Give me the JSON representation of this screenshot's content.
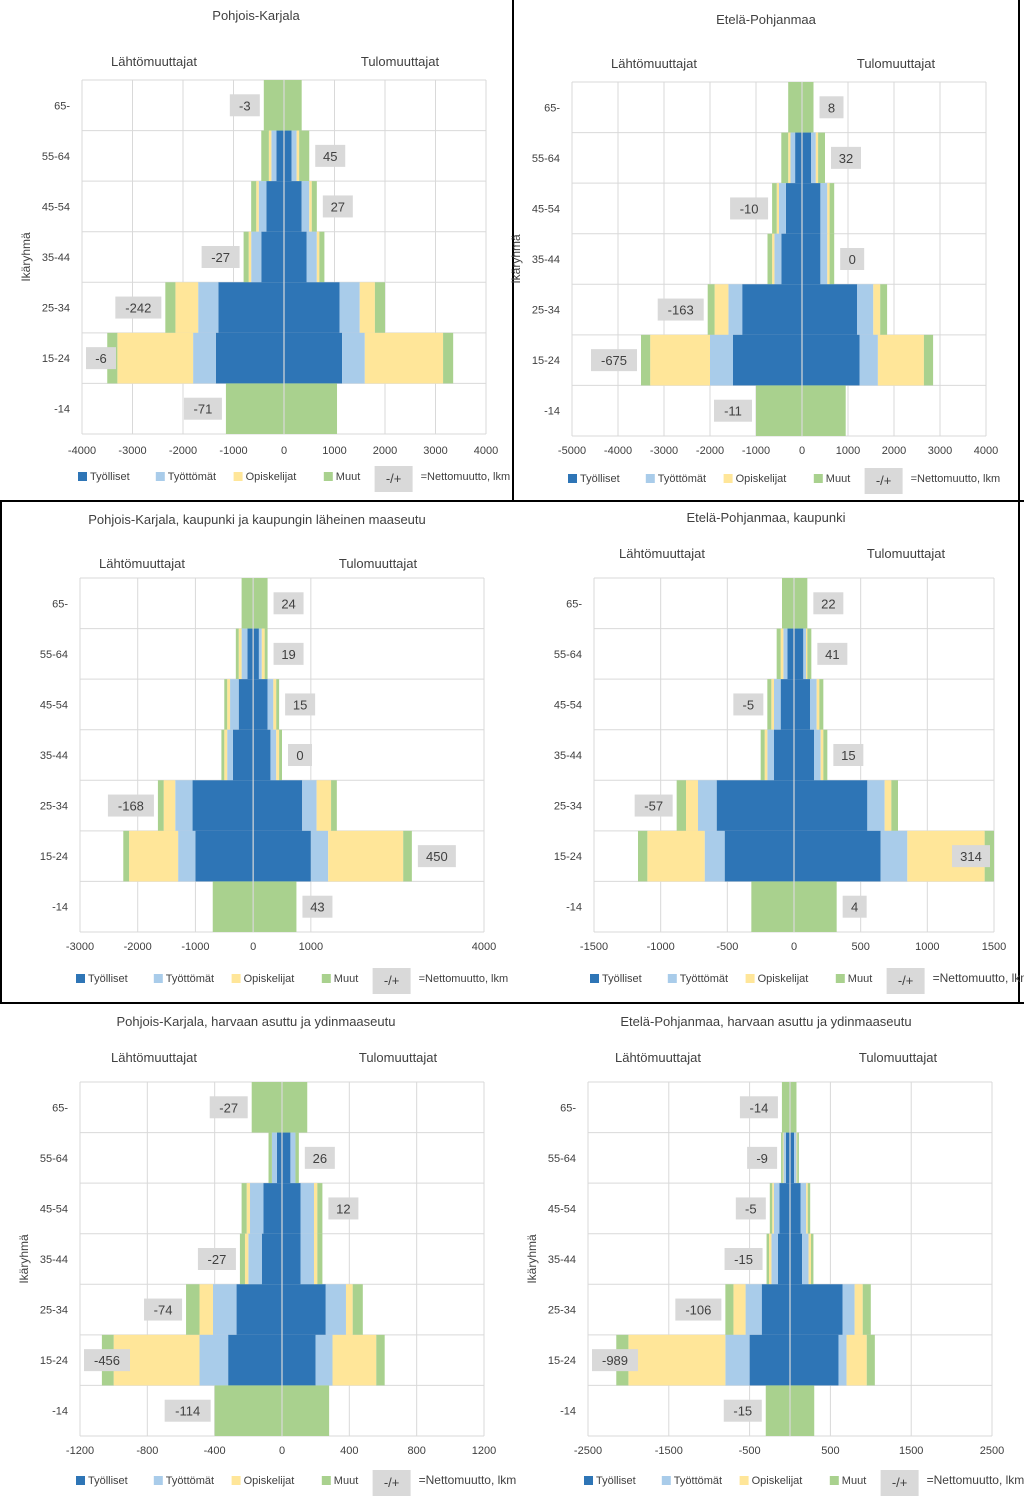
{
  "common": {
    "left_label": "Lähtömuuttajat",
    "right_label": "Tulomuuttajat",
    "ylabel": "Ikäryhmä",
    "age_groups": [
      "65-",
      "55-64",
      "45-54",
      "35-44",
      "25-34",
      "15-24",
      "-14"
    ],
    "legend": {
      "items": [
        "Työlliset",
        "Työttömät",
        "Opiskelijat",
        "Muut"
      ],
      "box_label": "-/+",
      "net_label": "=Nettomuutto, lkm",
      "net_label_large": "=Nettomuutto, lkm"
    },
    "colors": {
      "tyolliset": "#2E75B6",
      "tyottomat": "#A9CCEA",
      "opiskelijat": "#FFE699",
      "muut": "#A9D18E",
      "netbox": "#D9D9D9",
      "grid": "#D9D9D9"
    }
  },
  "chart_data": [
    {
      "type": "bar",
      "title": "Pohjois-Karjala",
      "categories": [
        "65-",
        "55-64",
        "45-54",
        "35-44",
        "25-34",
        "15-24",
        "-14"
      ],
      "xlim": [
        -4000,
        4000
      ],
      "ticks": [
        -4000,
        -3000,
        -2000,
        -1000,
        0,
        1000,
        2000,
        3000,
        4000
      ],
      "out": {
        "tyolliset": [
          0,
          150,
          350,
          450,
          1300,
          1350,
          0
        ],
        "tyottomat": [
          0,
          100,
          150,
          200,
          400,
          450,
          0
        ],
        "opiskelijat": [
          0,
          50,
          50,
          50,
          450,
          1500,
          0
        ],
        "muut": [
          400,
          150,
          100,
          100,
          200,
          200,
          1150
        ]
      },
      "in": {
        "tyolliset": [
          0,
          150,
          350,
          450,
          1100,
          1150,
          0
        ],
        "tyottomat": [
          0,
          100,
          150,
          200,
          400,
          450,
          0
        ],
        "opiskelijat": [
          0,
          50,
          50,
          50,
          300,
          1550,
          0
        ],
        "muut": [
          350,
          200,
          100,
          100,
          200,
          200,
          1050
        ]
      },
      "net": [
        -3,
        45,
        27,
        -27,
        -242,
        -6,
        -71
      ],
      "net_side": [
        "L",
        "R",
        "R",
        "L",
        "L",
        "L",
        "L"
      ],
      "show_ylabel": true,
      "legend_size": "small"
    },
    {
      "type": "bar",
      "title": "Etelä-Pohjanmaa",
      "categories": [
        "65-",
        "55-64",
        "45-54",
        "35-44",
        "25-34",
        "15-24",
        "-14"
      ],
      "xlim": [
        -5000,
        4000
      ],
      "ticks": [
        -5000,
        -4000,
        -3000,
        -2000,
        -1000,
        0,
        1000,
        2000,
        3000,
        4000
      ],
      "out": {
        "tyolliset": [
          0,
          150,
          350,
          450,
          1300,
          1500,
          0
        ],
        "tyottomat": [
          0,
          100,
          150,
          150,
          300,
          500,
          0
        ],
        "opiskelijat": [
          0,
          50,
          50,
          50,
          300,
          1300,
          0
        ],
        "muut": [
          300,
          150,
          100,
          100,
          150,
          200,
          1000
        ]
      },
      "in": {
        "tyolliset": [
          0,
          200,
          400,
          400,
          1200,
          1250,
          0
        ],
        "tyottomat": [
          0,
          100,
          150,
          150,
          350,
          400,
          0
        ],
        "opiskelijat": [
          0,
          50,
          50,
          50,
          150,
          1000,
          0
        ],
        "muut": [
          250,
          150,
          100,
          100,
          150,
          200,
          950
        ]
      },
      "net": [
        8,
        32,
        -10,
        0,
        -163,
        -675,
        -11
      ],
      "net_side": [
        "R",
        "R",
        "L",
        "R",
        "L",
        "L",
        "L"
      ],
      "show_ylabel": true,
      "legend_size": "small"
    },
    {
      "type": "bar",
      "title": "Pohjois-Karjala, kaupunki ja kaupungin läheinen maaseutu",
      "categories": [
        "65-",
        "55-64",
        "45-54",
        "35-44",
        "25-34",
        "15-24",
        "-14"
      ],
      "xlim": [
        -3000,
        4000
      ],
      "ticks": [
        -3000,
        -2000,
        -1000,
        0,
        1000,
        4000
      ],
      "tick_positions": [
        -3000,
        -2000,
        -1000,
        0,
        1000,
        4000
      ],
      "out": {
        "tyolliset": [
          0,
          100,
          250,
          350,
          1050,
          1000,
          0
        ],
        "tyottomat": [
          0,
          100,
          150,
          100,
          300,
          300,
          0
        ],
        "opiskelijat": [
          0,
          50,
          50,
          50,
          200,
          850,
          0
        ],
        "muut": [
          200,
          50,
          50,
          50,
          100,
          100,
          700
        ]
      },
      "in": {
        "tyolliset": [
          0,
          100,
          250,
          300,
          850,
          1000,
          0
        ],
        "tyottomat": [
          0,
          50,
          100,
          100,
          250,
          300,
          0
        ],
        "opiskelijat": [
          0,
          50,
          50,
          50,
          250,
          1300,
          0
        ],
        "muut": [
          250,
          50,
          50,
          50,
          100,
          150,
          750
        ]
      },
      "net": [
        24,
        19,
        15,
        0,
        -168,
        450,
        43
      ],
      "net_side": [
        "R",
        "R",
        "R",
        "R",
        "L",
        "R",
        "R"
      ],
      "show_ylabel": false,
      "legend_size": "small"
    },
    {
      "type": "bar",
      "title": "Etelä-Pohjanmaa, kaupunki",
      "categories": [
        "65-",
        "55-64",
        "45-54",
        "35-44",
        "25-34",
        "15-24",
        "-14"
      ],
      "xlim": [
        -1500,
        1500
      ],
      "ticks": [
        -1500,
        -1000,
        -500,
        0,
        500,
        1000,
        1500
      ],
      "out": {
        "tyolliset": [
          0,
          50,
          100,
          150,
          580,
          520,
          0
        ],
        "tyottomat": [
          0,
          30,
          50,
          50,
          140,
          150,
          0
        ],
        "opiskelijat": [
          0,
          20,
          20,
          20,
          90,
          430,
          0
        ],
        "muut": [
          90,
          30,
          30,
          30,
          70,
          70,
          320
        ]
      },
      "in": {
        "tyolliset": [
          0,
          70,
          120,
          150,
          550,
          650,
          0
        ],
        "tyottomat": [
          0,
          20,
          50,
          50,
          130,
          200,
          0
        ],
        "opiskelijat": [
          0,
          10,
          20,
          20,
          50,
          580,
          0
        ],
        "muut": [
          100,
          30,
          30,
          30,
          50,
          70,
          320
        ]
      },
      "net": [
        22,
        41,
        -5,
        15,
        -57,
        314,
        4
      ],
      "net_side": [
        "R",
        "R",
        "L",
        "R",
        "L",
        "R",
        "R"
      ],
      "show_ylabel": false,
      "legend_size": "large"
    },
    {
      "type": "bar",
      "title": "Pohjois-Karjala, harvaan asuttu ja ydinmaaseutu",
      "categories": [
        "65-",
        "55-64",
        "45-54",
        "35-44",
        "25-34",
        "15-24",
        "-14"
      ],
      "xlim": [
        -1200,
        1200
      ],
      "ticks": [
        -1200,
        -800,
        -400,
        0,
        400,
        800,
        1200
      ],
      "out": {
        "tyolliset": [
          0,
          30,
          110,
          120,
          270,
          320,
          0
        ],
        "tyottomat": [
          0,
          30,
          80,
          80,
          140,
          170,
          0
        ],
        "opiskelijat": [
          0,
          0,
          20,
          20,
          80,
          510,
          0
        ],
        "muut": [
          180,
          20,
          30,
          30,
          80,
          70,
          400
        ]
      },
      "in": {
        "tyolliset": [
          0,
          50,
          110,
          110,
          260,
          200,
          0
        ],
        "tyottomat": [
          0,
          30,
          80,
          80,
          120,
          100,
          0
        ],
        "opiskelijat": [
          0,
          0,
          20,
          20,
          40,
          260,
          0
        ],
        "muut": [
          150,
          20,
          30,
          30,
          60,
          50,
          280
        ]
      },
      "net": [
        -27,
        26,
        12,
        -27,
        -74,
        -456,
        -114
      ],
      "net_side": [
        "L",
        "R",
        "R",
        "L",
        "L",
        "L",
        "L"
      ],
      "show_ylabel": true,
      "legend_size": "large"
    },
    {
      "type": "bar",
      "title": "Etelä-Pohjanmaa, harvaan asuttu ja ydinmaaseutu",
      "categories": [
        "65-",
        "55-64",
        "45-54",
        "35-44",
        "25-34",
        "15-24",
        "-14"
      ],
      "xlim": [
        -2500,
        2500
      ],
      "ticks": [
        -2500,
        -1500,
        -500,
        500,
        1500,
        2500
      ],
      "out": {
        "tyolliset": [
          0,
          50,
          130,
          150,
          350,
          500,
          0
        ],
        "tyottomat": [
          0,
          30,
          70,
          80,
          200,
          300,
          0
        ],
        "opiskelijat": [
          0,
          10,
          20,
          30,
          150,
          1200,
          0
        ],
        "muut": [
          100,
          20,
          30,
          30,
          100,
          150,
          300
        ]
      },
      "in": {
        "tyolliset": [
          0,
          50,
          130,
          150,
          650,
          600,
          0
        ],
        "tyottomat": [
          0,
          30,
          70,
          80,
          150,
          100,
          0
        ],
        "opiskelijat": [
          0,
          10,
          20,
          30,
          100,
          250,
          0
        ],
        "muut": [
          80,
          20,
          30,
          30,
          100,
          100,
          300
        ]
      },
      "net": [
        -14,
        -9,
        -5,
        -15,
        -106,
        -989,
        -15
      ],
      "net_side": [
        "L",
        "L",
        "L",
        "L",
        "L",
        "L",
        "L"
      ],
      "show_ylabel": true,
      "legend_size": "large"
    }
  ]
}
